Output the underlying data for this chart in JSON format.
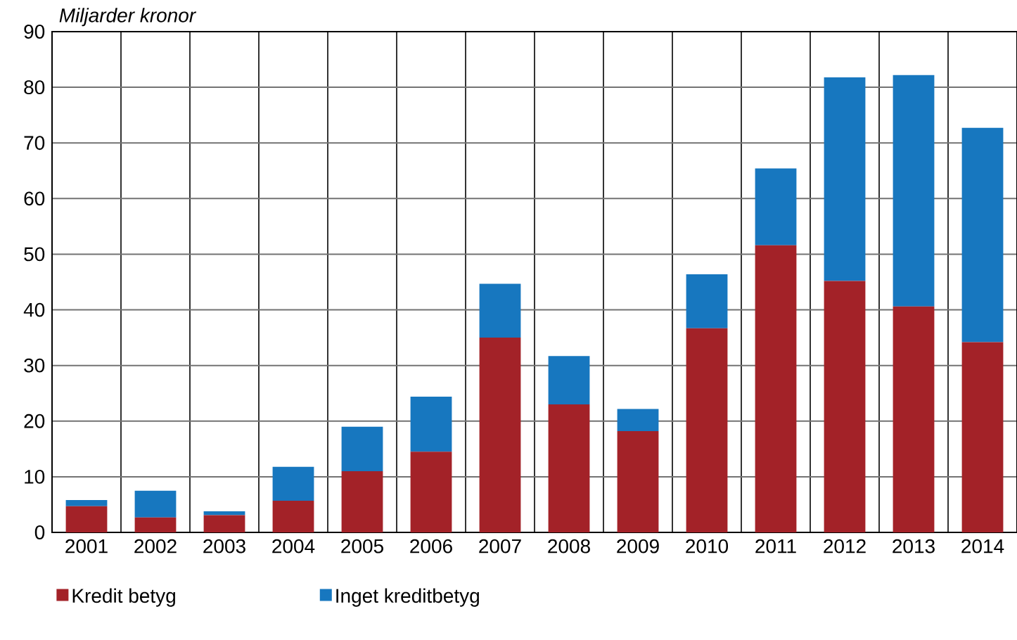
{
  "chart_data": {
    "type": "bar",
    "stacked": true,
    "ylabel": "Miljarder kronor",
    "categories": [
      "2001",
      "2002",
      "2003",
      "2004",
      "2005",
      "2006",
      "2007",
      "2008",
      "2009",
      "2010",
      "2011",
      "2012",
      "2013",
      "2014"
    ],
    "series": [
      {
        "name": "Kredit betyg",
        "color": "#a32228",
        "values": [
          4.7,
          2.7,
          3.1,
          5.7,
          11.0,
          14.5,
          35.0,
          23.0,
          18.2,
          36.7,
          51.6,
          45.2,
          40.6,
          34.2
        ]
      },
      {
        "name": "Inget kreditbetyg",
        "color": "#1777bf",
        "values": [
          1.1,
          4.8,
          0.7,
          6.1,
          8.0,
          9.9,
          9.7,
          8.7,
          4.0,
          9.7,
          13.8,
          36.6,
          41.6,
          38.5
        ]
      }
    ],
    "ylim": [
      0,
      90
    ],
    "yticks": [
      0,
      10,
      20,
      30,
      40,
      50,
      60,
      70,
      80,
      90
    ],
    "grid": true,
    "legend": "bottom"
  }
}
